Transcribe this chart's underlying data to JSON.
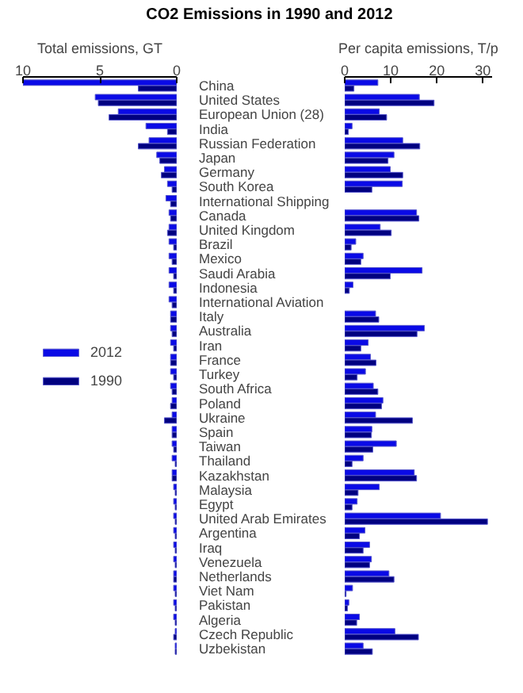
{
  "chart_data": [
    {
      "type": "bar",
      "orientation": "horizontal",
      "title": "CO2 Emissions in 1990 and 2012",
      "xlabel": "Total emissions, GT",
      "xlim": [
        10,
        0
      ],
      "xticks": [
        10,
        5,
        0
      ],
      "legend": "left",
      "categories": [
        "China",
        "United States",
        "European Union (28)",
        "India",
        "Russian Federation",
        "Japan",
        "Germany",
        "South Korea",
        "International Shipping",
        "Canada",
        "United Kingdom",
        "Brazil",
        "Mexico",
        "Saudi Arabia",
        "Indonesia",
        "International Aviation",
        "Italy",
        "Australia",
        "Iran",
        "France",
        "Turkey",
        "South Africa",
        "Poland",
        "Ukraine",
        "Spain",
        "Taiwan",
        "Thailand",
        "Kazakhstan",
        "Malaysia",
        "Egypt",
        "United Arab Emirates",
        "Argentina",
        "Iraq",
        "Venezuela",
        "Netherlands",
        "Viet Nam",
        "Pakistan",
        "Algeria",
        "Czech Republic",
        "Uzbekistan"
      ],
      "series": [
        {
          "name": "2012",
          "color": "#0a0ae6",
          "values": [
            10.0,
            5.3,
            3.8,
            2.0,
            1.8,
            1.3,
            0.8,
            0.6,
            0.7,
            0.5,
            0.5,
            0.5,
            0.5,
            0.5,
            0.5,
            0.5,
            0.4,
            0.4,
            0.4,
            0.4,
            0.4,
            0.4,
            0.3,
            0.3,
            0.3,
            0.3,
            0.3,
            0.3,
            0.2,
            0.2,
            0.2,
            0.2,
            0.2,
            0.2,
            0.2,
            0.2,
            0.2,
            0.2,
            0.1,
            0.1
          ]
        },
        {
          "name": "1990",
          "color": "#000080",
          "values": [
            2.5,
            5.1,
            4.4,
            0.6,
            2.5,
            1.1,
            1.0,
            0.3,
            0.4,
            0.4,
            0.6,
            0.2,
            0.3,
            0.2,
            0.2,
            0.3,
            0.4,
            0.3,
            0.2,
            0.4,
            0.2,
            0.3,
            0.4,
            0.8,
            0.3,
            0.2,
            0.1,
            0.3,
            0.1,
            0.1,
            0.1,
            0.1,
            0.1,
            0.1,
            0.2,
            0.1,
            0.1,
            0.1,
            0.2,
            0.1
          ]
        }
      ]
    },
    {
      "type": "bar",
      "orientation": "horizontal",
      "xlabel": "Per capita emissions, T/p",
      "xlim": [
        0,
        32
      ],
      "xticks": [
        0,
        10,
        20,
        30
      ],
      "tick_labels": "x",
      "categories": [
        null,
        null,
        null,
        null,
        null,
        null,
        null,
        null,
        null,
        null,
        null,
        null,
        null,
        null,
        null,
        null,
        null,
        null,
        null,
        null,
        null,
        null,
        null,
        null,
        null,
        null,
        null,
        null,
        null,
        null,
        null,
        null,
        null,
        null,
        null,
        null,
        null,
        null,
        null,
        null
      ],
      "series": [
        {
          "color": "#0a0ae6",
          "values": [
            7.2,
            16.2,
            7.5,
            1.6,
            12.6,
            10.7,
            9.9,
            12.5,
            null,
            15.6,
            7.7,
            2.4,
            4.0,
            16.8,
            1.8,
            null,
            6.7,
            17.3,
            5.1,
            5.6,
            4.5,
            6.2,
            8.3,
            6.7,
            5.9,
            11.2,
            4.0,
            15.1,
            7.5,
            2.7,
            20.8,
            4.4,
            5.4,
            5.8,
            9.6,
            1.7,
            0.9,
            3.2,
            10.9,
            4.0
          ]
        },
        {
          "color": "#000080",
          "values": [
            2.0,
            19.4,
            9.1,
            0.8,
            16.3,
            9.4,
            12.6,
            5.9,
            null,
            16.1,
            10.1,
            1.4,
            3.5,
            9.9,
            1.0,
            null,
            7.4,
            15.7,
            3.5,
            6.8,
            2.7,
            7.2,
            8.0,
            14.7,
            5.8,
            6.1,
            1.6,
            15.6,
            2.9,
            1.6,
            31.0,
            3.2,
            4.0,
            5.4,
            10.7,
            0.3,
            0.6,
            2.6,
            16.0,
            6.0
          ]
        }
      ]
    }
  ]
}
